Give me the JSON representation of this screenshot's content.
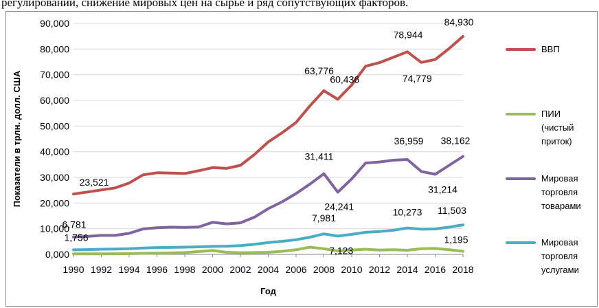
{
  "header_text": "регулирований, снижение мировых цен на сырье и ряд сопутствующих факторов.",
  "chart_data": {
    "type": "line",
    "title": "",
    "xlabel": "Год",
    "ylabel": "Показатели в трлн. долл. США",
    "ylim": [
      0,
      90000
    ],
    "xlim": [
      1990,
      2018
    ],
    "y_ticks": [
      "0,000",
      "10,000",
      "20,000",
      "30,000",
      "40,000",
      "50,000",
      "60,000",
      "70,000",
      "80,000",
      "90,000"
    ],
    "x_ticks": [
      "1990",
      "1992",
      "1994",
      "1996",
      "1998",
      "2000",
      "2002",
      "2004",
      "2006",
      "2008",
      "2010",
      "2012",
      "2014",
      "2016",
      "2018"
    ],
    "grid": true,
    "legend_position": "right",
    "x": [
      1990,
      1991,
      1992,
      1993,
      1994,
      1995,
      1996,
      1997,
      1998,
      1999,
      2000,
      2001,
      2002,
      2003,
      2004,
      2005,
      2006,
      2007,
      2008,
      2009,
      2010,
      2011,
      2012,
      2013,
      2014,
      2015,
      2016,
      2017,
      2018
    ],
    "series": [
      {
        "name": "ВВП",
        "color": "#C0504D",
        "values": [
          23521,
          24300,
          25100,
          25900,
          27800,
          31000,
          31800,
          31700,
          31500,
          32600,
          33800,
          33500,
          34700,
          38900,
          43800,
          47400,
          51400,
          57900,
          63776,
          60436,
          66000,
          73300,
          74700,
          76800,
          78944,
          74779,
          75900,
          80200,
          84930
        ]
      },
      {
        "name": "ПИИ (чистый приток)",
        "color": "#9BBB59",
        "values": [
          200,
          200,
          200,
          250,
          300,
          400,
          450,
          550,
          700,
          1100,
          1500,
          800,
          650,
          700,
          800,
          1200,
          1800,
          2800,
          2200,
          1300,
          1700,
          2000,
          1700,
          1800,
          1600,
          2200,
          2300,
          1800,
          1195
        ]
      },
      {
        "name": "Мировая торговля товарами",
        "color": "#8064A2",
        "values": [
          6781,
          7000,
          7400,
          7400,
          8200,
          9900,
          10400,
          10600,
          10500,
          10700,
          12500,
          11900,
          12300,
          14500,
          17800,
          20500,
          23700,
          27400,
          31411,
          24241,
          29400,
          35600,
          36000,
          36700,
          36959,
          32300,
          31214,
          34700,
          38162
        ]
      },
      {
        "name": "Мировая торговля услугами",
        "color": "#4BACC6",
        "values": [
          1756,
          1850,
          2000,
          2050,
          2200,
          2500,
          2650,
          2700,
          2800,
          2950,
          3100,
          3200,
          3400,
          3900,
          4600,
          5100,
          5700,
          6700,
          7981,
          7123,
          7800,
          8600,
          8900,
          9400,
          10273,
          9800,
          9900,
          10600,
          11503
        ]
      }
    ],
    "annotations": [
      {
        "series": 0,
        "x": 1990,
        "text": "23,521"
      },
      {
        "series": 0,
        "x": 2008,
        "text": "63,776"
      },
      {
        "series": 0,
        "x": 2009,
        "text": "60,436"
      },
      {
        "series": 0,
        "x": 2014,
        "text": "78,944"
      },
      {
        "series": 0,
        "x": 2015,
        "text": "74,779"
      },
      {
        "series": 0,
        "x": 2018,
        "text": "84,930"
      },
      {
        "series": 2,
        "x": 1990,
        "text": "6,781"
      },
      {
        "series": 2,
        "x": 2008,
        "text": "31,411"
      },
      {
        "series": 2,
        "x": 2009,
        "text": "24,241"
      },
      {
        "series": 2,
        "x": 2014,
        "text": "36,959"
      },
      {
        "series": 2,
        "x": 2016,
        "text": "31,214"
      },
      {
        "series": 2,
        "x": 2018,
        "text": "38,162"
      },
      {
        "series": 3,
        "x": 1990,
        "text": "1,756"
      },
      {
        "series": 3,
        "x": 2008,
        "text": "7,981"
      },
      {
        "series": 3,
        "x": 2009,
        "text": "7,123"
      },
      {
        "series": 3,
        "x": 2014,
        "text": "10,273"
      },
      {
        "series": 3,
        "x": 2018,
        "text": "11,503"
      },
      {
        "series": 1,
        "x": 2018,
        "text": "1,195"
      }
    ],
    "legend": [
      {
        "color": "#C0504D",
        "lines": [
          "ВВП"
        ]
      },
      {
        "color": "#9BBB59",
        "lines": [
          "ПИИ",
          "(чистый",
          "приток)"
        ]
      },
      {
        "color": "#8064A2",
        "lines": [
          "Мировая",
          "торговля",
          "товарами"
        ]
      },
      {
        "color": "#4BACC6",
        "lines": [
          "Мировая",
          "торговля",
          "услугами"
        ]
      }
    ]
  }
}
